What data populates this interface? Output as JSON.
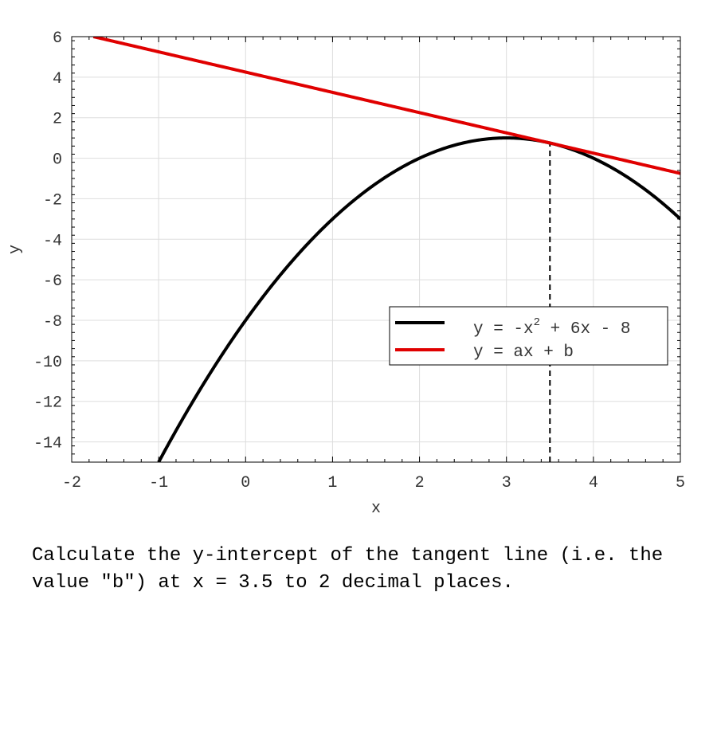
{
  "chart_data": {
    "type": "line",
    "xlabel": "x",
    "ylabel": "y",
    "xlim": [
      -2,
      5
    ],
    "ylim": [
      -15,
      6
    ],
    "xticks": [
      -2,
      -1,
      0,
      1,
      2,
      3,
      4,
      5
    ],
    "yticks": [
      -14,
      -12,
      -10,
      -8,
      -6,
      -4,
      -2,
      0,
      2,
      4,
      6
    ],
    "grid": true,
    "legend_position": "lower-right",
    "series": [
      {
        "name": "y = -x^2 + 6x - 8",
        "color": "#000000",
        "function": {
          "kind": "quadratic",
          "a": -1,
          "b": 6,
          "c": -8
        },
        "x_range": [
          -1,
          5
        ]
      },
      {
        "name": "y = ax + b",
        "color": "#e00000",
        "function": {
          "kind": "linear",
          "slope": -1,
          "intercept": 4.25
        },
        "x_range": [
          -1.75,
          5
        ]
      }
    ],
    "annotations": [
      {
        "kind": "vertical-dashed-line",
        "x": 3.5,
        "y_from": -15,
        "y_to": 0.75
      }
    ]
  },
  "legend": {
    "curve_prefix": "y = -x",
    "curve_sup": "2",
    "curve_suffix": " + 6x - 8",
    "line_label": "y = ax + b"
  },
  "question": "Calculate the y-intercept of the tangent line (i.e. the value \"b\") at x = 3.5 to 2 decimal places."
}
